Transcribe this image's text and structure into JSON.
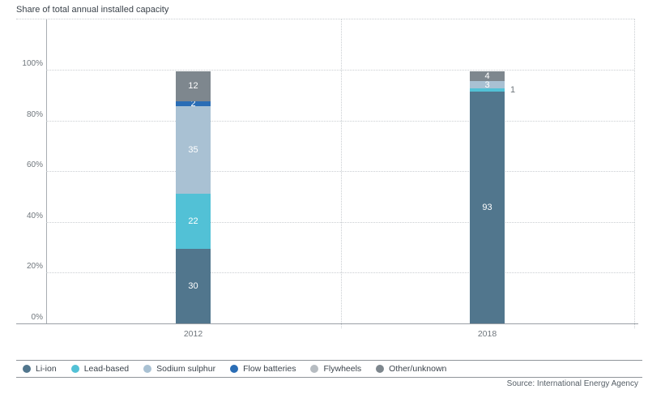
{
  "source": {
    "label": "Source: International Energy Agency"
  },
  "chart_data": {
    "type": "bar",
    "stacked": true,
    "title": "Share of total annual installed capacity",
    "xlabel": "",
    "ylabel": "Share of total annual installed capacity",
    "unit": "%",
    "categories": [
      "2012",
      "2018"
    ],
    "yticks": [
      "0%",
      "20%",
      "40%",
      "60%",
      "80%",
      "100%"
    ],
    "ylim": [
      0,
      100
    ],
    "grid": "dotted-horizontal",
    "legend_position": "bottom",
    "series": [
      {
        "name": "Li-ion",
        "color": "#51768d",
        "values": [
          30,
          93
        ]
      },
      {
        "name": "Lead-based",
        "color": "#52c1d6",
        "values": [
          22,
          1
        ]
      },
      {
        "name": "Sodium sulphur",
        "color": "#a9c1d3",
        "values": [
          35,
          3
        ]
      },
      {
        "name": "Flow batteries",
        "color": "#2a6db5",
        "values": [
          2,
          0
        ]
      },
      {
        "name": "Flywheels",
        "color": "#b6bcc1",
        "values": [
          0,
          0
        ]
      },
      {
        "name": "Other/unknown",
        "color": "#7e878e",
        "values": [
          12,
          4
        ]
      }
    ]
  }
}
